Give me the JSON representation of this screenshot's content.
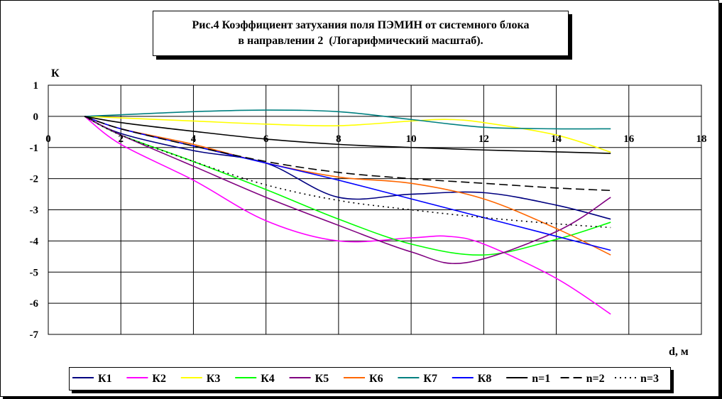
{
  "chart_data": {
    "type": "line",
    "title_lines": [
      "Рис.4 Коэффициент затухания поля ПЭМИН от системного блока",
      "в направлении 2  (Логарифмический масштаб)."
    ],
    "ylabel": "К",
    "xlabel": "d, м",
    "xlim": [
      0,
      18
    ],
    "ylim": [
      -7,
      1
    ],
    "x_ticks": [
      "0",
      "2",
      "4",
      "6",
      "8",
      "10",
      "12",
      "14",
      "16",
      "18"
    ],
    "y_ticks": [
      "1",
      "0",
      "-1",
      "-2",
      "-3",
      "-4",
      "-5",
      "-6",
      "-7"
    ],
    "grid": true,
    "legend_position": "bottom",
    "series": [
      {
        "name": "К1",
        "color": "#000080",
        "dash": "solid",
        "x": [
          1,
          2,
          4,
          6,
          8,
          10,
          12,
          14,
          15.5
        ],
        "y": [
          0,
          -0.55,
          -1.1,
          -1.5,
          -2.6,
          -2.5,
          -2.45,
          -2.85,
          -3.3
        ]
      },
      {
        "name": "К2",
        "color": "#ff00ff",
        "dash": "solid",
        "x": [
          1,
          2,
          4,
          6,
          8,
          10,
          11,
          12,
          14,
          15.5
        ],
        "y": [
          0,
          -0.9,
          -2.05,
          -3.35,
          -4.0,
          -3.9,
          -3.85,
          -4.1,
          -5.2,
          -6.35
        ]
      },
      {
        "name": "К3",
        "color": "#ffff00",
        "dash": "solid",
        "x": [
          1,
          2,
          4,
          6,
          8,
          10,
          11,
          12,
          14,
          15.5
        ],
        "y": [
          0,
          -0.05,
          -0.15,
          -0.25,
          -0.3,
          -0.15,
          -0.1,
          -0.2,
          -0.6,
          -1.15
        ]
      },
      {
        "name": "К4",
        "color": "#00ff00",
        "dash": "solid",
        "x": [
          1,
          2,
          4,
          6,
          8,
          10,
          12,
          14,
          15.5
        ],
        "y": [
          0,
          -0.6,
          -1.45,
          -2.35,
          -3.3,
          -4.1,
          -4.45,
          -3.95,
          -3.4
        ]
      },
      {
        "name": "К5",
        "color": "#800080",
        "dash": "solid",
        "x": [
          1,
          2,
          4,
          6,
          8,
          10,
          11.5,
          14,
          15.5
        ],
        "y": [
          0,
          -0.6,
          -1.6,
          -2.6,
          -3.5,
          -4.35,
          -4.7,
          -3.7,
          -2.6
        ]
      },
      {
        "name": "К6",
        "color": "#ff6600",
        "dash": "solid",
        "x": [
          1,
          2,
          4,
          6,
          8,
          10,
          12,
          14,
          15.5
        ],
        "y": [
          0,
          -0.4,
          -0.9,
          -1.5,
          -1.95,
          -2.15,
          -2.65,
          -3.6,
          -4.45
        ]
      },
      {
        "name": "К7",
        "color": "#008080",
        "dash": "solid",
        "x": [
          1,
          2,
          4,
          6,
          8,
          10,
          12,
          14,
          15.5
        ],
        "y": [
          0,
          0.05,
          0.15,
          0.2,
          0.15,
          -0.1,
          -0.35,
          -0.4,
          -0.4
        ]
      },
      {
        "name": "К8",
        "color": "#0000ff",
        "dash": "solid",
        "x": [
          1,
          2,
          4,
          6,
          8,
          10,
          12,
          14,
          15.5
        ],
        "y": [
          0,
          -0.4,
          -0.95,
          -1.5,
          -2.05,
          -2.65,
          -3.25,
          -3.85,
          -4.3
        ]
      },
      {
        "name": "n=1",
        "color": "#000000",
        "dash": "solid",
        "x": [
          1,
          2,
          4,
          6,
          8,
          10,
          12,
          14,
          15.5
        ],
        "y": [
          0,
          -0.2,
          -0.48,
          -0.73,
          -0.9,
          -1.0,
          -1.08,
          -1.14,
          -1.19
        ]
      },
      {
        "name": "n=2",
        "color": "#000000",
        "dash": "dashed",
        "x": [
          1,
          2,
          4,
          6,
          8,
          10,
          12,
          14,
          15.5
        ],
        "y": [
          0,
          -0.4,
          -0.95,
          -1.45,
          -1.8,
          -2.0,
          -2.15,
          -2.3,
          -2.38
        ]
      },
      {
        "name": "n=3",
        "color": "#000000",
        "dash": "dotted",
        "x": [
          1,
          2,
          4,
          6,
          8,
          10,
          12,
          14,
          15.5
        ],
        "y": [
          0,
          -0.6,
          -1.45,
          -2.2,
          -2.7,
          -3.0,
          -3.25,
          -3.45,
          -3.57
        ]
      }
    ]
  }
}
